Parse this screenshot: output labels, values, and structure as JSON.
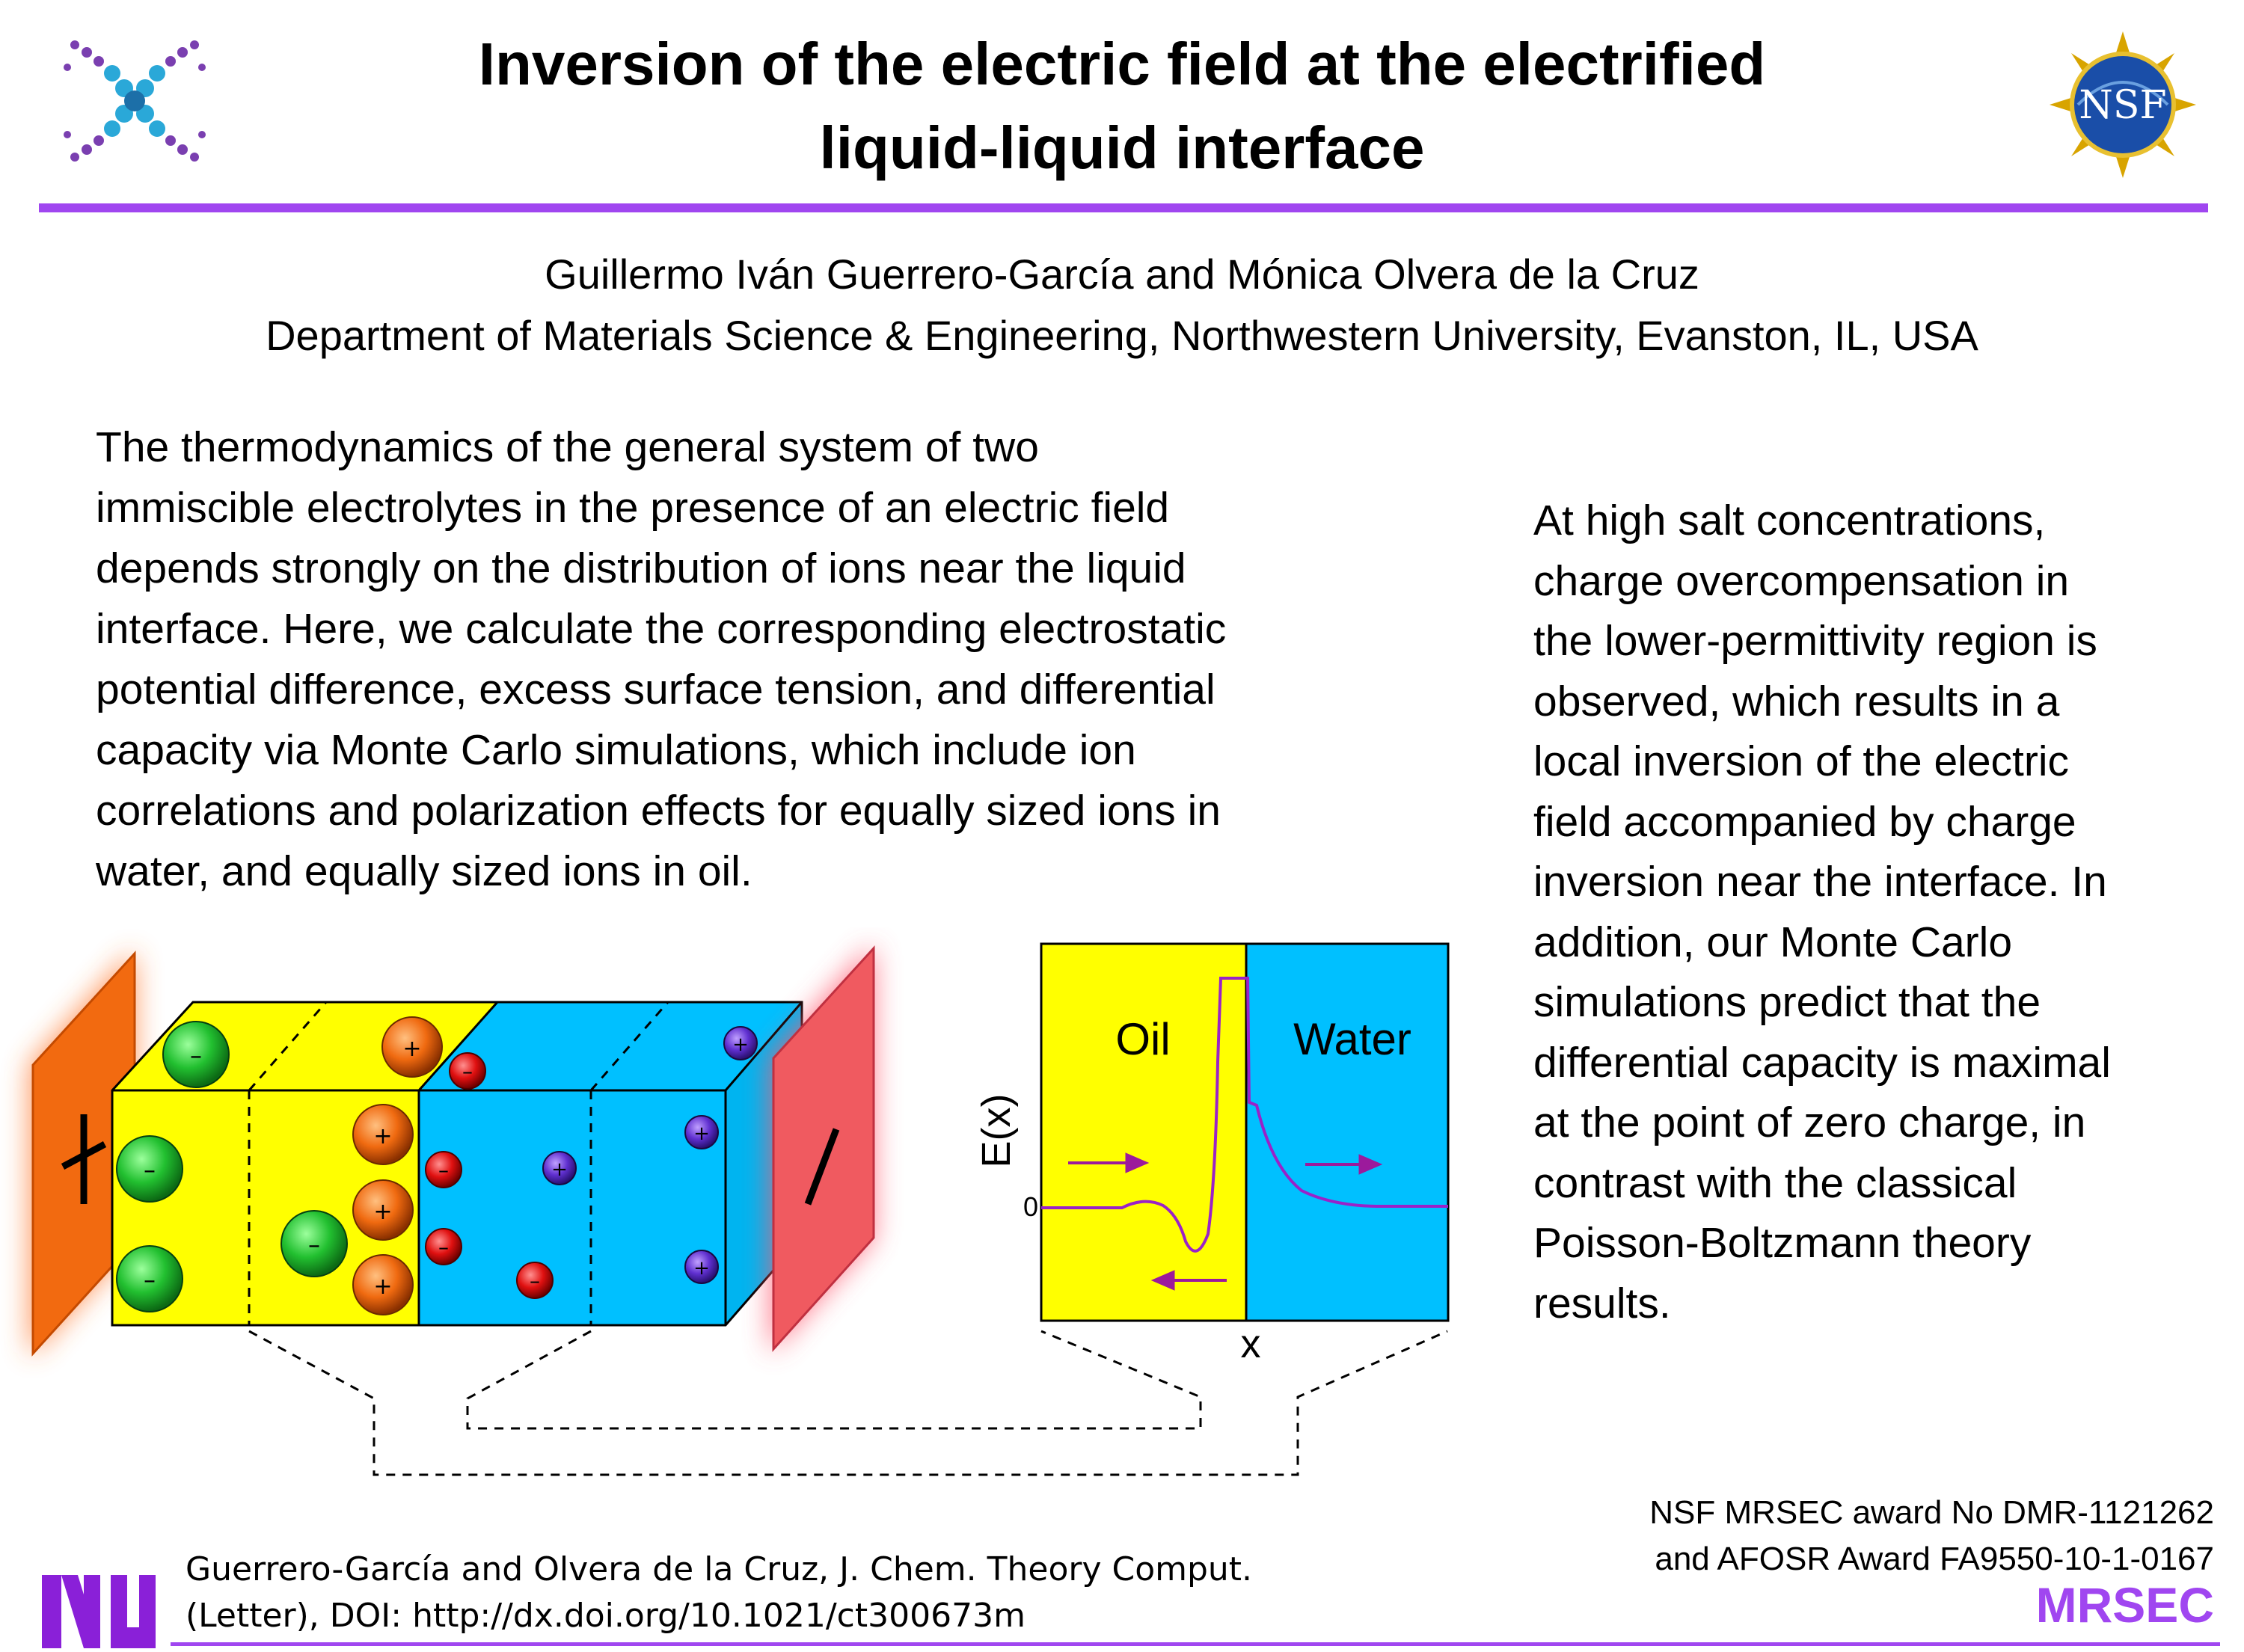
{
  "header": {
    "title_line1": "Inversion of the electric field at the electrified",
    "title_line2": "liquid-liquid interface"
  },
  "authors": {
    "names": "Guillermo Iván Guerrero-García and Mónica Olvera de la Cruz",
    "affiliation": "Department of Materials Science & Engineering, Northwestern University, Evanston, IL, USA"
  },
  "abstract": {
    "lines": [
      "The thermodynamics of the general system of two",
      "immiscible electrolytes in the presence of an electric field",
      "depends strongly on the distribution of ions near the liquid",
      "interface. Here, we calculate the corresponding electrostatic",
      "potential difference, excess surface tension, and differential",
      "capacity via Monte Carlo simulations, which include ion",
      "correlations and polarization effects for equally sized ions in",
      "water, and equally sized ions in oil."
    ]
  },
  "result": {
    "lines": [
      "At high salt concentrations,",
      "charge overcompensation in",
      "the lower-permittivity region is",
      "observed, which results in a",
      "local inversion of the electric",
      "field accompanied by charge",
      "inversion near the interface. In",
      "addition, our Monte Carlo",
      "simulations predict that the",
      "differential capacity is maximal",
      "at the point of zero charge, in",
      "contrast with the classical",
      "Poisson-Boltzmann theory",
      "results."
    ]
  },
  "figure": {
    "plus_sign": "+",
    "minus_sign": "–",
    "graph": {
      "oil_label": "Oil",
      "water_label": "Water",
      "y_axis_label": "E(x)",
      "x_axis_label": "x",
      "zero_label": "0"
    },
    "colors": {
      "oil": "#ffff00",
      "water": "#00c0ff",
      "electrode": "#ff6a10",
      "arrow": "#9c1a9c",
      "curve": "#9a22c8"
    }
  },
  "funding": {
    "line1": "NSF MRSEC award No DMR-1121262",
    "line2": "and AFOSR Award FA9550-10-1-0167",
    "mrsec_label": "MRSEC"
  },
  "citation": {
    "line1": "Guerrero-García and Olvera de la Cruz, J. Chem. Theory Comput.",
    "line2": "(Letter), DOI: http://dx.doi.org/10.1021/ct300673m"
  },
  "logos": {
    "nsf_text": "NSF",
    "accent": "#a046f0"
  }
}
